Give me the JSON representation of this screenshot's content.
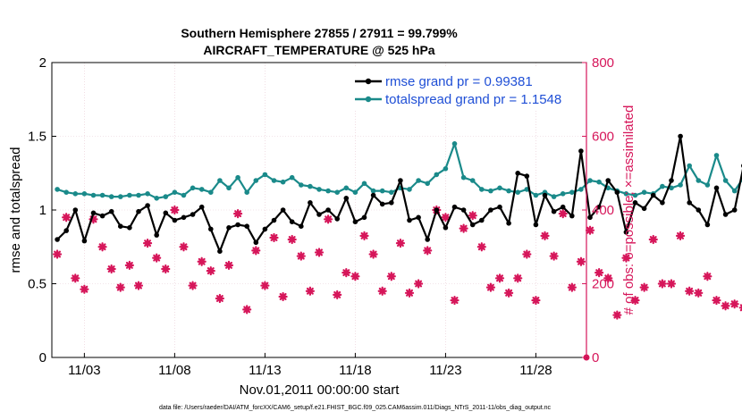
{
  "chart_data": {
    "type": "line",
    "title_line1": "Southern Hemisphere 27855 / 27911 = 99.799%",
    "title_line2": "AIRCRAFT_TEMPERATURE @ 525 hPa",
    "xlabel": "Nov.01,2011 00:00:00 start",
    "ylabel_left": "rmse and totalspread",
    "ylabel_right": "# of obs: o=possible; ×=assimilated",
    "x_ticks": [
      "11/03",
      "11/08",
      "11/13",
      "11/18",
      "11/23",
      "11/28"
    ],
    "x_tick_days": [
      2,
      7,
      12,
      17,
      22,
      27
    ],
    "xlim": [
      0.2,
      29.8
    ],
    "ylim_left": [
      0,
      2
    ],
    "ylim_right": [
      0,
      800
    ],
    "y_ticks_left": [
      "0",
      "0.5",
      "1",
      "1.5",
      "2"
    ],
    "y_ticks_right": [
      "0",
      "200",
      "400",
      "600",
      "800"
    ],
    "grid": true,
    "legend_position": "top-right",
    "footer": "data file: /Users/raeder/DAI/ATM_forcXX/CAM6_setup/f.e21.FHIST_BGC.f09_025.CAM6assim.011/Diags_NTrS_2011-11/obs_diag_output.nc",
    "colors": {
      "rmse": "#000000",
      "spread": "#1a8a8a",
      "obs": "#d6165a",
      "right_axis": "#d6165a",
      "legend_text": "#1f4fd6",
      "grid": "#e8c9d3"
    },
    "series": [
      {
        "name": "rmse grand pr = 0.99381",
        "values": [
          0.8,
          0.86,
          1.0,
          0.79,
          0.98,
          0.96,
          0.99,
          0.89,
          0.88,
          0.99,
          1.03,
          0.83,
          0.98,
          0.93,
          0.95,
          0.97,
          1.02,
          0.87,
          0.72,
          0.88,
          0.9,
          0.89,
          0.78,
          0.87,
          0.93,
          1.0,
          0.92,
          0.89,
          1.05,
          0.97,
          1.0,
          0.94,
          1.08,
          0.92,
          0.95,
          1.1,
          1.04,
          1.05,
          1.2,
          0.93,
          0.95,
          0.8,
          1.0,
          0.88,
          1.02,
          1.0,
          0.9,
          0.93,
          1.0,
          1.02,
          0.91,
          1.25,
          1.23,
          0.9,
          1.1,
          0.99,
          1.02,
          0.96,
          1.4,
          0.95,
          1.02,
          1.2,
          1.12,
          0.85,
          1.05,
          1.01,
          1.1,
          1.05,
          1.2,
          1.5,
          1.05,
          1.0,
          0.9,
          1.15,
          0.97,
          1.0,
          1.3,
          0.78,
          1.0,
          0.9,
          1.1,
          1.03,
          0.88,
          0.87,
          1.02,
          0.88,
          0.98,
          0.82,
          0.99,
          0.86,
          1.0,
          0.9,
          0.77,
          1.05,
          0.85,
          0.94,
          1.11,
          0.98,
          1.14,
          0.82,
          1.0,
          0.98,
          0.99,
          1.07,
          1.02,
          0.96,
          1.1,
          1.2,
          1.05,
          0.97,
          0.93,
          1.1,
          1.03,
          0.97,
          0.92,
          0.93,
          1.05,
          1.2,
          0.94,
          1.1,
          0.89,
          1.12,
          0.93,
          1.05,
          0.92,
          0.99,
          1.0,
          1.06,
          1.05,
          1.2,
          1.15,
          0.98,
          0.93,
          0.95,
          1.0,
          0.92,
          1.12,
          1.0,
          1.0,
          0.8,
          0.96,
          0.92,
          1.05,
          0.97,
          0.92,
          0.86,
          0.85,
          1.0,
          1.22,
          1.27,
          1.1,
          0.95
        ]
      },
      {
        "name": "totalspread grand pr = 1.1548",
        "values": [
          1.14,
          1.12,
          1.11,
          1.11,
          1.1,
          1.1,
          1.09,
          1.09,
          1.1,
          1.1,
          1.11,
          1.08,
          1.09,
          1.12,
          1.1,
          1.15,
          1.14,
          1.12,
          1.2,
          1.15,
          1.22,
          1.12,
          1.2,
          1.24,
          1.2,
          1.19,
          1.22,
          1.17,
          1.16,
          1.14,
          1.13,
          1.12,
          1.15,
          1.12,
          1.18,
          1.13,
          1.13,
          1.12,
          1.15,
          1.14,
          1.2,
          1.18,
          1.24,
          1.28,
          1.45,
          1.22,
          1.2,
          1.14,
          1.13,
          1.15,
          1.13,
          1.12,
          1.14,
          1.1,
          1.12,
          1.09,
          1.11,
          1.12,
          1.14,
          1.2,
          1.19,
          1.15,
          1.13,
          1.11,
          1.1,
          1.12,
          1.11,
          1.16,
          1.15,
          1.17,
          1.3,
          1.2,
          1.17,
          1.37,
          1.2,
          1.13,
          1.22,
          1.13,
          1.13,
          1.17,
          1.2,
          1.14,
          1.13,
          1.17,
          1.23,
          1.14,
          1.15,
          1.16,
          1.12,
          1.14,
          1.15,
          1.13,
          1.21,
          1.15,
          1.17,
          1.16,
          1.17,
          1.21,
          1.15,
          1.15,
          1.17,
          1.14,
          1.13,
          1.14,
          1.12,
          1.15,
          1.14,
          1.14,
          1.2,
          1.15,
          1.17,
          1.13,
          1.16,
          1.17,
          1.2,
          1.14,
          1.13,
          1.15,
          1.24,
          1.18,
          1.2,
          1.2,
          1.15,
          1.13,
          1.13,
          1.13,
          1.2,
          1.16,
          1.21,
          1.36,
          1.2,
          1.15,
          1.2,
          1.13,
          1.15,
          1.12,
          1.12,
          1.11,
          1.12,
          1.13,
          1.11,
          1.1,
          1.13,
          1.11,
          1.1,
          1.1,
          1.11,
          1.2,
          1.22,
          1.18,
          1.32
        ]
      },
      {
        "name": "# of obs",
        "axis": "right",
        "values": [
          280,
          380,
          215,
          185,
          375,
          300,
          240,
          190,
          250,
          195,
          310,
          270,
          240,
          400,
          300,
          195,
          260,
          235,
          160,
          250,
          390,
          130,
          290,
          195,
          325,
          165,
          320,
          275,
          180,
          285,
          375,
          170,
          230,
          220,
          330,
          280,
          180,
          220,
          310,
          175,
          200,
          290,
          400,
          380,
          155,
          350,
          385,
          300,
          190,
          215,
          175,
          215,
          280,
          155,
          330,
          275,
          390,
          190,
          260,
          345,
          230,
          215,
          115,
          270,
          155,
          190,
          320,
          200,
          200,
          330,
          180,
          175,
          220,
          155,
          140,
          145,
          135,
          160,
          145,
          130,
          110,
          150,
          85,
          95,
          190,
          215,
          165,
          205,
          130,
          135,
          65,
          115,
          150,
          150,
          135,
          115,
          145,
          100,
          160,
          80,
          150,
          150,
          125,
          110,
          85,
          105,
          195,
          180,
          200,
          210,
          260,
          190,
          170,
          240,
          190,
          225,
          220,
          270,
          195,
          180,
          185,
          225,
          290,
          280,
          385,
          180,
          325,
          280,
          385,
          220,
          245,
          140,
          215,
          240,
          410,
          325,
          380,
          350,
          300,
          280,
          360,
          390,
          265,
          310,
          160,
          340,
          185,
          270,
          255,
          225,
          340,
          370,
          260,
          320,
          135,
          220,
          260,
          350,
          235,
          165,
          215,
          210
        ]
      }
    ]
  }
}
